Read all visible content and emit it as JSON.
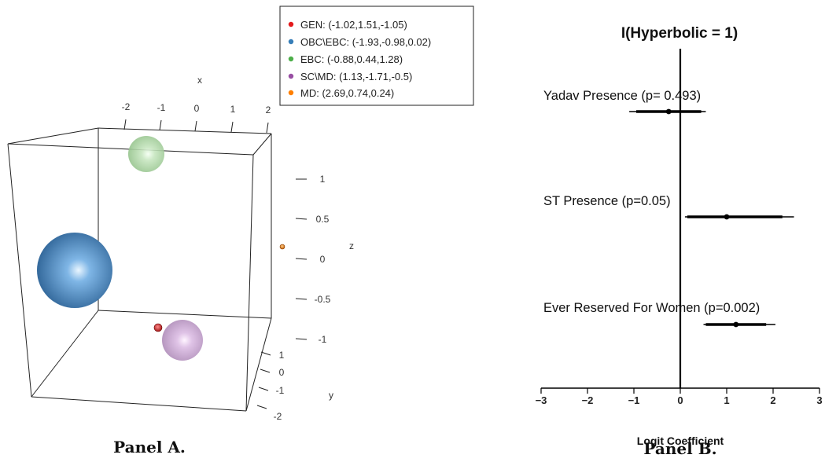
{
  "chart_data": [
    {
      "type": "scatter3d",
      "caption": "Panel A.",
      "axes": {
        "x": {
          "label": "x",
          "ticks": [
            "-2",
            "-1",
            "0",
            "1",
            "2"
          ]
        },
        "y": {
          "label": "y",
          "ticks": [
            "1",
            "0",
            "-1",
            "-2"
          ]
        },
        "z": {
          "label": "z",
          "ticks": [
            "1",
            "0.5",
            "0",
            "-0.5",
            "-1"
          ]
        }
      },
      "legend": [
        {
          "label": "GEN: (-1.02,1.51,-1.05)",
          "color": "#e41a1c"
        },
        {
          "label": "OBC\\EBC: (-1.93,-0.98,0.02)",
          "color": "#377eb8"
        },
        {
          "label": "EBC: (-0.88,0.44,1.28)",
          "color": "#4daf4a"
        },
        {
          "label": "SC\\MD: (1.13,-1.71,-0.5)",
          "color": "#984ea3"
        },
        {
          "label": "MD: (2.69,0.74,0.24)",
          "color": "#ff7f00"
        }
      ],
      "points": [
        {
          "name": "GEN",
          "x": -1.02,
          "y": 1.51,
          "z": -1.05,
          "color": "#e41a1c"
        },
        {
          "name": "OBC\\EBC",
          "x": -1.93,
          "y": -0.98,
          "z": 0.02,
          "color": "#377eb8"
        },
        {
          "name": "EBC",
          "x": -0.88,
          "y": 0.44,
          "z": 1.28,
          "color": "#4daf4a"
        },
        {
          "name": "SC\\MD",
          "x": 1.13,
          "y": -1.71,
          "z": -0.5,
          "color": "#984ea3"
        },
        {
          "name": "MD",
          "x": 2.69,
          "y": 0.74,
          "z": 0.24,
          "color": "#ff7f00"
        }
      ]
    },
    {
      "type": "forest",
      "caption": "Panel B.",
      "title": "I(Hyperbolic = 1)",
      "xlabel": "Logit Coefficient",
      "xlim": [
        -3,
        3
      ],
      "xticks": [
        "−3",
        "−2",
        "−1",
        "0",
        "1",
        "2",
        "3"
      ],
      "rows": [
        {
          "label": "Yadav Presence (p= 0.493)",
          "estimate": -0.25,
          "ci_inner": [
            -0.95,
            0.45
          ],
          "ci_outer": [
            -1.1,
            0.55
          ]
        },
        {
          "label": "ST Presence (p=0.05)",
          "estimate": 1.0,
          "ci_inner": [
            0.15,
            2.2
          ],
          "ci_outer": [
            0.1,
            2.45
          ]
        },
        {
          "label": "Ever Reserved For  Women (p=0.002)",
          "estimate": 1.2,
          "ci_inner": [
            0.55,
            1.85
          ],
          "ci_outer": [
            0.5,
            2.05
          ]
        }
      ]
    }
  ]
}
